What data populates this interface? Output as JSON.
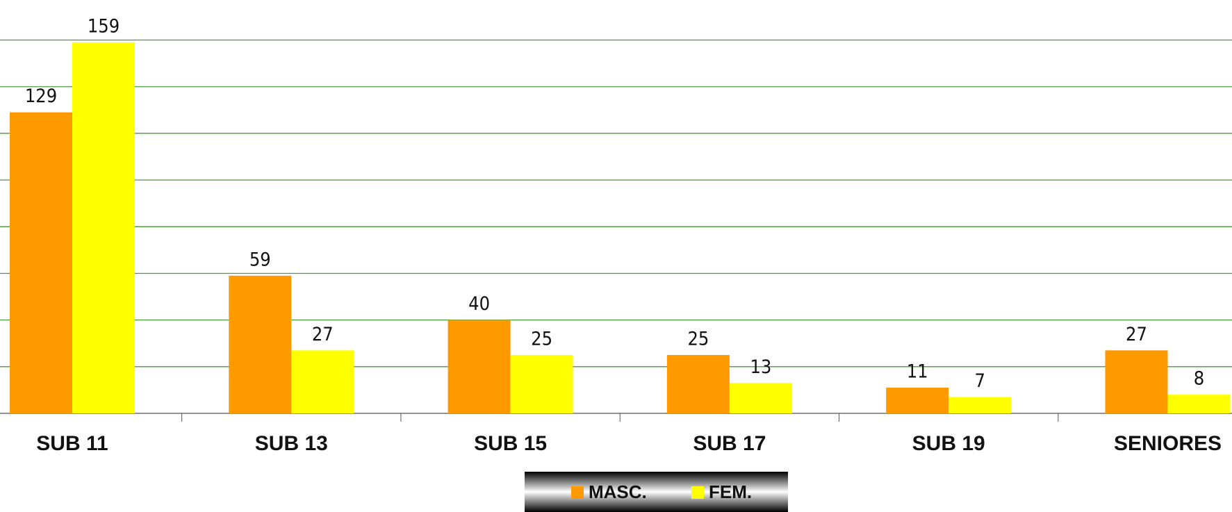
{
  "chart_data": {
    "type": "bar",
    "categories": [
      "SUB 11",
      "SUB 13",
      "SUB 15",
      "SUB 17",
      "SUB 19",
      "SENIORES"
    ],
    "series": [
      {
        "name": "MASC.",
        "color": "#ff9900",
        "values": [
          129,
          59,
          40,
          25,
          11,
          27
        ]
      },
      {
        "name": "FEM.",
        "color": "#ffff00",
        "values": [
          159,
          27,
          25,
          13,
          7,
          8
        ]
      }
    ],
    "ylim": [
      0,
      160
    ],
    "yticks": [
      0,
      20,
      40,
      60,
      80,
      100,
      120,
      140,
      160
    ],
    "grid": true
  }
}
